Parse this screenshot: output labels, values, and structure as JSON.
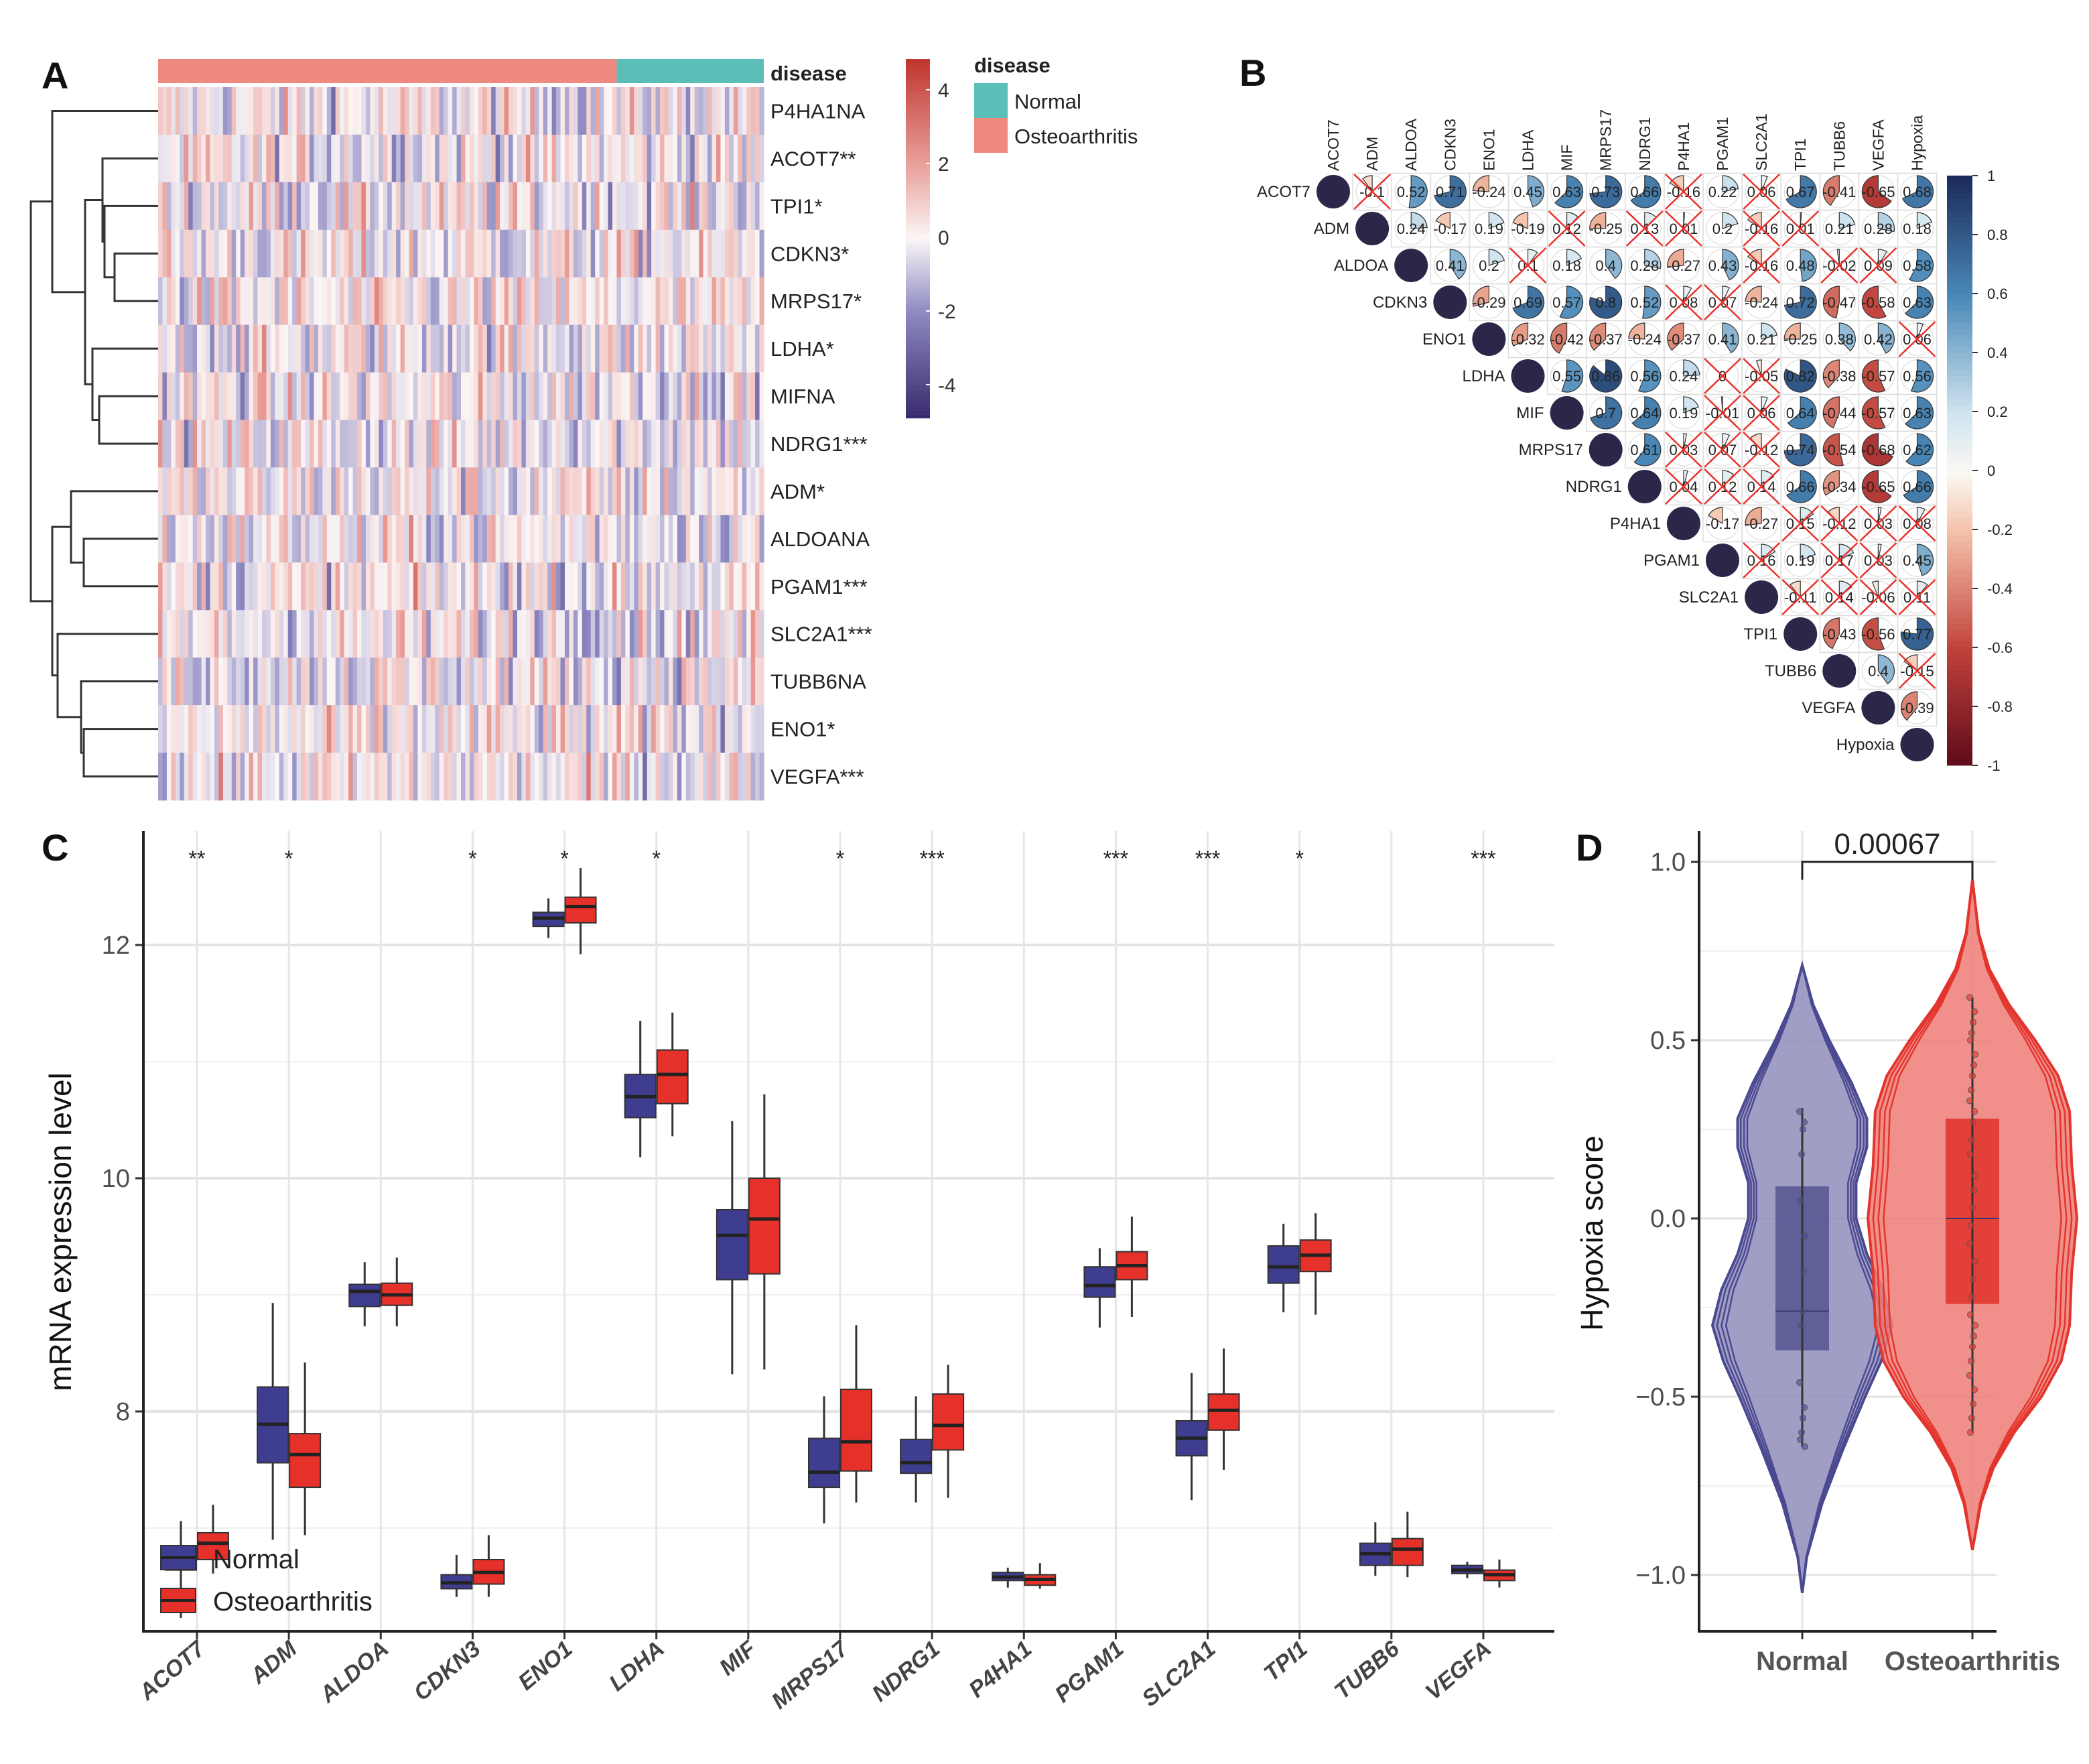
{
  "panel_labels": {
    "a": "A",
    "b": "B",
    "c": "C",
    "d": "D"
  },
  "colors": {
    "normal": "#3f3d8f",
    "osteoarthritis": "#e5312a",
    "annotation_normal": "#5bbfb8",
    "annotation_osteoarthritis": "#ef8a80",
    "heat_high": "#c0362f",
    "heat_low": "#37286b",
    "corr_pos": "#1c2c5c",
    "corr_neg": "#5c0a1a",
    "nonsig_cross": "#e8302a"
  },
  "chart_data": [
    {
      "type": "heatmap",
      "annotation_title": "disease",
      "legend_title": "disease",
      "legend": [
        "Normal",
        "Osteoarthritis"
      ],
      "groups": [
        "Osteoarthritis",
        "Normal"
      ],
      "row_labels": [
        "P4HA1NA",
        "ACOT7**",
        "TPI1*",
        "CDKN3*",
        "MRPS17*",
        "LDHA*",
        "MIFNA",
        "NDRG1***",
        "ADM*",
        "ALDOANA",
        "PGAM1***",
        "SLC2A1***",
        "TUBB6NA",
        "ENO1*",
        "VEGFA***"
      ],
      "colorbar_ticks": [
        "4",
        "2",
        "0",
        "-2",
        "-4"
      ],
      "color_range": [
        -4.9,
        4.8
      ],
      "dendrogram": "row clustering"
    },
    {
      "type": "correlation",
      "labels": [
        "ACOT7",
        "ADM",
        "ALDOA",
        "CDKN3",
        "ENO1",
        "LDHA",
        "MIF",
        "MRPS17",
        "NDRG1",
        "P4HA1",
        "PGAM1",
        "SLC2A1",
        "TPI1",
        "TUBB6",
        "VEGFA",
        "Hypoxia"
      ],
      "rows": [
        {
          "values": [
            -0.1,
            0.52,
            0.71,
            -0.24,
            0.45,
            0.63,
            0.73,
            0.66,
            -0.16,
            0.22,
            0.06,
            0.67,
            -0.41,
            -0.65,
            0.68
          ],
          "crossed": [
            1,
            0,
            0,
            0,
            0,
            0,
            0,
            0,
            1,
            0,
            1,
            0,
            0,
            0,
            0
          ]
        },
        {
          "values": [
            0.24,
            -0.17,
            0.19,
            -0.19,
            0.12,
            -0.25,
            0.13,
            0.01,
            0.2,
            -0.16,
            0.01,
            0.21,
            0.28,
            0.18
          ],
          "crossed": [
            0,
            0,
            0,
            0,
            1,
            0,
            1,
            1,
            0,
            1,
            1,
            0,
            0,
            0
          ]
        },
        {
          "values": [
            0.41,
            0.2,
            0.1,
            0.18,
            0.4,
            0.28,
            -0.27,
            0.43,
            -0.16,
            0.48,
            -0.02,
            0.09,
            0.58
          ],
          "crossed": [
            0,
            0,
            1,
            0,
            0,
            0,
            0,
            0,
            1,
            0,
            1,
            1,
            0
          ]
        },
        {
          "values": [
            -0.29,
            0.69,
            0.57,
            0.8,
            0.52,
            0.08,
            0.07,
            -0.24,
            0.72,
            -0.47,
            -0.58,
            0.63
          ],
          "crossed": [
            0,
            0,
            0,
            0,
            0,
            1,
            1,
            0,
            0,
            0,
            0,
            0
          ]
        },
        {
          "values": [
            -0.32,
            -0.42,
            -0.37,
            -0.24,
            -0.37,
            0.41,
            0.21,
            -0.25,
            0.38,
            0.42,
            0.06
          ],
          "crossed": [
            0,
            0,
            0,
            0,
            0,
            0,
            0,
            0,
            0,
            0,
            1
          ]
        },
        {
          "values": [
            0.55,
            0.86,
            0.56,
            0.24,
            0,
            -0.05,
            0.82,
            -0.38,
            -0.57,
            0.56
          ],
          "crossed": [
            0,
            0,
            0,
            0,
            1,
            1,
            0,
            0,
            0,
            0
          ]
        },
        {
          "values": [
            0.7,
            0.64,
            0.19,
            -0.01,
            0.06,
            0.64,
            -0.44,
            -0.57,
            0.63
          ],
          "crossed": [
            0,
            0,
            0,
            1,
            1,
            0,
            0,
            0,
            0
          ]
        },
        {
          "values": [
            0.61,
            0.03,
            0.07,
            -0.12,
            0.74,
            -0.54,
            -0.68,
            0.62
          ],
          "crossed": [
            0,
            1,
            1,
            1,
            0,
            0,
            0,
            0
          ]
        },
        {
          "values": [
            0.04,
            0.12,
            0.14,
            0.66,
            -0.34,
            -0.65,
            0.66
          ],
          "crossed": [
            1,
            1,
            1,
            0,
            0,
            0,
            0
          ]
        },
        {
          "values": [
            -0.17,
            -0.27,
            0.15,
            -0.12,
            0.03,
            0.08
          ],
          "crossed": [
            0,
            0,
            1,
            1,
            1,
            1
          ]
        },
        {
          "values": [
            0.16,
            0.19,
            0.17,
            0.03,
            0.45
          ],
          "crossed": [
            1,
            0,
            1,
            1,
            0
          ]
        },
        {
          "values": [
            -0.11,
            0.14,
            -0.06,
            0.11
          ],
          "crossed": [
            1,
            1,
            1,
            1
          ]
        },
        {
          "values": [
            -0.43,
            -0.56,
            0.77
          ],
          "crossed": [
            0,
            0,
            0
          ]
        },
        {
          "values": [
            0.4,
            -0.15
          ],
          "crossed": [
            0,
            1
          ]
        },
        {
          "values": [
            -0.39
          ],
          "crossed": [
            0
          ]
        },
        {
          "values": [],
          "crossed": []
        }
      ],
      "colorbar_ticks": [
        "1",
        "0.8",
        "0.6",
        "0.4",
        "0.2",
        "0",
        "-0.2",
        "-0.4",
        "-0.6",
        "-0.8",
        "-1"
      ]
    },
    {
      "type": "box",
      "ylabel": "mRNA expression level",
      "ylim": [
        6.1,
        13.0
      ],
      "yticks": [
        "8",
        "10",
        "12"
      ],
      "grid": true,
      "legend_position": "bottom-left",
      "categories": [
        "ACOT7",
        "ADM",
        "ALDOA",
        "CDKN3",
        "ENO1",
        "LDHA",
        "MIF",
        "MRPS17",
        "NDRG1",
        "P4HA1",
        "PGAM1",
        "SLC2A1",
        "TPI1",
        "TUBB6",
        "VEGFA"
      ],
      "significance": [
        "**",
        "*",
        "",
        "*",
        "*",
        "*",
        "",
        "*",
        "***",
        "",
        "***",
        "***",
        "*",
        "",
        "***"
      ],
      "series": [
        {
          "name": "Normal",
          "stats_min_q1_median_q3_max": [
            [
              6.23,
              6.64,
              6.73,
              6.85,
              7.06
            ],
            [
              6.9,
              7.56,
              7.89,
              8.21,
              8.93
            ],
            [
              8.73,
              8.9,
              9.03,
              9.09,
              9.28
            ],
            [
              6.41,
              6.48,
              6.53,
              6.6,
              6.77
            ],
            [
              12.06,
              12.16,
              12.23,
              12.28,
              12.4
            ],
            [
              10.18,
              10.52,
              10.7,
              10.89,
              11.35
            ],
            [
              8.32,
              9.13,
              9.51,
              9.73,
              10.49
            ],
            [
              7.04,
              7.35,
              7.48,
              7.77,
              8.13
            ],
            [
              7.22,
              7.47,
              7.56,
              7.76,
              8.13
            ],
            [
              6.49,
              6.55,
              6.58,
              6.62,
              6.66
            ],
            [
              8.72,
              8.98,
              9.08,
              9.24,
              9.4
            ],
            [
              7.24,
              7.62,
              7.77,
              7.92,
              8.33
            ],
            [
              8.85,
              9.1,
              9.24,
              9.42,
              9.61
            ],
            [
              6.59,
              6.68,
              6.78,
              6.87,
              7.05
            ],
            [
              6.57,
              6.61,
              6.64,
              6.68,
              6.71
            ]
          ]
        },
        {
          "name": "Osteoarthritis",
          "stats_min_q1_median_q3_max": [
            [
              6.61,
              6.73,
              6.87,
              6.96,
              7.2
            ],
            [
              6.94,
              7.35,
              7.63,
              7.81,
              8.42
            ],
            [
              8.73,
              8.91,
              9.0,
              9.1,
              9.32
            ],
            [
              6.41,
              6.52,
              6.62,
              6.73,
              6.94
            ],
            [
              11.92,
              12.19,
              12.33,
              12.41,
              12.66
            ],
            [
              10.36,
              10.64,
              10.89,
              11.1,
              11.42
            ],
            [
              8.36,
              9.18,
              9.65,
              10.0,
              10.72
            ],
            [
              7.22,
              7.49,
              7.74,
              8.19,
              8.74
            ],
            [
              7.26,
              7.67,
              7.88,
              8.15,
              8.4
            ],
            [
              6.48,
              6.51,
              6.56,
              6.6,
              6.7
            ],
            [
              8.81,
              9.13,
              9.25,
              9.37,
              9.67
            ],
            [
              7.5,
              7.84,
              8.01,
              8.15,
              8.54
            ],
            [
              8.83,
              9.2,
              9.34,
              9.47,
              9.7
            ],
            [
              6.58,
              6.68,
              6.82,
              6.91,
              7.14
            ],
            [
              6.49,
              6.55,
              6.6,
              6.64,
              6.73
            ]
          ]
        }
      ]
    },
    {
      "type": "violin",
      "ylabel": "Hypoxia score",
      "ylim": [
        -1.15,
        1.09
      ],
      "yticks": [
        "1.0",
        "0.5",
        "0.0",
        "−0.5",
        "−1.0"
      ],
      "ytick_values": [
        1.0,
        0.5,
        0.0,
        -0.5,
        -1.0
      ],
      "categories": [
        "Normal",
        "Osteoarthritis"
      ],
      "pvalue": "0.00067",
      "groups": [
        {
          "name": "Normal",
          "q1": -0.37,
          "median": -0.26,
          "q3": 0.09,
          "whisker_low": -0.64,
          "whisker_high": 0.31,
          "density": [
            [
              -1.05,
              0
            ],
            [
              -0.95,
              0.05
            ],
            [
              -0.8,
              0.22
            ],
            [
              -0.65,
              0.45
            ],
            [
              -0.5,
              0.7
            ],
            [
              -0.4,
              0.88
            ],
            [
              -0.3,
              1.0
            ],
            [
              -0.2,
              0.9
            ],
            [
              -0.1,
              0.72
            ],
            [
              0,
              0.6
            ],
            [
              0.1,
              0.6
            ],
            [
              0.2,
              0.72
            ],
            [
              0.28,
              0.72
            ],
            [
              0.38,
              0.55
            ],
            [
              0.5,
              0.3
            ],
            [
              0.6,
              0.12
            ],
            [
              0.71,
              0
            ]
          ],
          "points": [
            0.3,
            0.27,
            0.25,
            0.18,
            0.05,
            -0.05,
            -0.15,
            -0.26,
            -0.3,
            -0.46,
            -0.53,
            -0.56,
            -0.6,
            -0.62,
            -0.64
          ]
        },
        {
          "name": "Osteoarthritis",
          "q1": -0.24,
          "median": 0.0,
          "q3": 0.28,
          "whisker_low": -0.6,
          "whisker_high": 0.62,
          "density": [
            [
              -0.93,
              0
            ],
            [
              -0.8,
              0.08
            ],
            [
              -0.7,
              0.2
            ],
            [
              -0.6,
              0.4
            ],
            [
              -0.5,
              0.66
            ],
            [
              -0.4,
              0.85
            ],
            [
              -0.3,
              0.93
            ],
            [
              -0.15,
              0.95
            ],
            [
              0,
              1.0
            ],
            [
              0.15,
              0.95
            ],
            [
              0.3,
              0.93
            ],
            [
              0.4,
              0.82
            ],
            [
              0.5,
              0.6
            ],
            [
              0.6,
              0.35
            ],
            [
              0.7,
              0.16
            ],
            [
              0.8,
              0.06
            ],
            [
              0.95,
              0
            ]
          ],
          "points": [
            0.62,
            0.58,
            0.55,
            0.52,
            0.5,
            0.46,
            0.43,
            0.4,
            0.36,
            0.33,
            0.3,
            0.27,
            0.22,
            0.18,
            0.12,
            0.08,
            0.03,
            -0.02,
            -0.07,
            -0.12,
            -0.17,
            -0.22,
            -0.27,
            -0.3,
            -0.33,
            -0.36,
            -0.4,
            -0.44,
            -0.48,
            -0.52,
            -0.56,
            -0.6
          ]
        }
      ]
    }
  ]
}
